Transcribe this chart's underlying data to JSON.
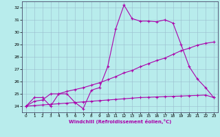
{
  "xlabel": "Windchill (Refroidissement éolien,°C)",
  "xlim": [
    -0.5,
    23.5
  ],
  "ylim": [
    23.5,
    32.5
  ],
  "yticks": [
    24,
    25,
    26,
    27,
    28,
    29,
    30,
    31,
    32
  ],
  "xticks": [
    0,
    1,
    2,
    3,
    4,
    5,
    6,
    7,
    8,
    9,
    10,
    11,
    12,
    13,
    14,
    15,
    16,
    17,
    18,
    19,
    20,
    21,
    22,
    23
  ],
  "bg_color": "#b8ecec",
  "line_color": "#aa00aa",
  "grid_color": "#99bbcc",
  "line1_x": [
    0,
    1,
    2,
    3,
    4,
    5,
    6,
    7,
    8,
    9,
    10,
    11,
    12,
    13,
    14,
    15,
    16,
    17,
    18,
    19,
    20,
    21,
    22,
    23
  ],
  "line1_y": [
    24.0,
    24.7,
    24.7,
    24.0,
    25.0,
    25.0,
    24.3,
    23.8,
    25.3,
    25.5,
    27.2,
    30.3,
    32.2,
    31.1,
    30.9,
    30.9,
    30.85,
    31.0,
    30.75,
    29.0,
    27.2,
    26.2,
    25.5,
    24.7
  ],
  "line2_x": [
    0,
    1,
    2,
    3,
    4,
    5,
    6,
    7,
    8,
    9,
    10,
    11,
    12,
    13,
    14,
    15,
    16,
    17,
    18,
    19,
    20,
    21,
    22,
    23
  ],
  "line2_y": [
    24.0,
    24.4,
    24.5,
    25.0,
    25.0,
    25.2,
    25.35,
    25.5,
    25.7,
    25.9,
    26.15,
    26.4,
    26.7,
    26.9,
    27.2,
    27.45,
    27.7,
    27.9,
    28.2,
    28.5,
    28.7,
    28.95,
    29.1,
    29.2
  ],
  "line3_x": [
    0,
    1,
    2,
    3,
    4,
    5,
    6,
    7,
    8,
    9,
    10,
    11,
    12,
    13,
    14,
    15,
    16,
    17,
    18,
    19,
    20,
    21,
    22,
    23
  ],
  "line3_y": [
    24.0,
    24.05,
    24.1,
    24.15,
    24.2,
    24.25,
    24.3,
    24.35,
    24.4,
    24.45,
    24.5,
    24.55,
    24.6,
    24.65,
    24.7,
    24.72,
    24.75,
    24.78,
    24.8,
    24.82,
    24.85,
    24.87,
    24.9,
    24.7
  ]
}
